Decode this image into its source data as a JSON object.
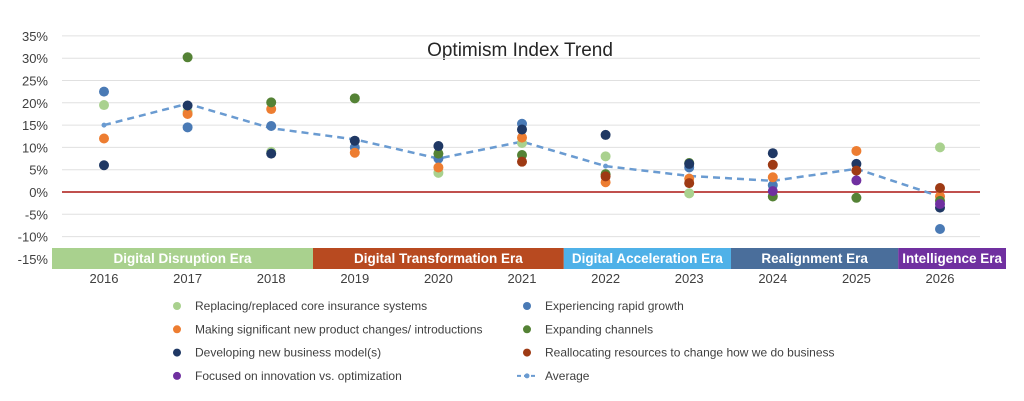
{
  "chart_data": {
    "type": "scatter",
    "title": "Optimism Index Trend",
    "categories": [
      "2016",
      "2017",
      "2018",
      "2019",
      "2020",
      "2021",
      "2022",
      "2023",
      "2024",
      "2025",
      "2026"
    ],
    "ylim": [
      -15,
      35
    ],
    "yticks": [
      "35%",
      "30%",
      "25%",
      "20%",
      "15%",
      "10%",
      "5%",
      "0%",
      "-5%",
      "-10%",
      "-15%"
    ],
    "ytick_values": [
      35,
      30,
      25,
      20,
      15,
      10,
      5,
      0,
      -5,
      -10,
      -15
    ],
    "grid": true,
    "legend_position": "bottom",
    "zero_line_color": "#c0504d",
    "eras": [
      {
        "label": "Digital Disruption Era",
        "from": "2016",
        "to": "2018",
        "color": "#a9d18e"
      },
      {
        "label": "Digital Transformation Era",
        "from": "2019",
        "to": "2021",
        "color": "#b84a20"
      },
      {
        "label": "Digital Acceleration Era",
        "from": "2022",
        "to": "2023",
        "color": "#4fb1e8"
      },
      {
        "label": "Realignment Era",
        "from": "2024",
        "to": "2025",
        "color": "#4a6e9b"
      },
      {
        "label": "Intelligence Era",
        "from": "2026",
        "to": "2026",
        "color": "#7030a0"
      }
    ],
    "series": [
      {
        "name": "Replacing/replaced core insurance systems",
        "color": "#a9d18e",
        "values": [
          19.5,
          18,
          9,
          null,
          4.3,
          11,
          8,
          -0.3,
          null,
          null,
          10
        ]
      },
      {
        "name": "Experiencing rapid growth",
        "color": "#4a7ab5",
        "values": [
          22.5,
          14.5,
          14.8,
          10,
          7.5,
          15.3,
          null,
          5.5,
          1.5,
          null,
          -8.3
        ]
      },
      {
        "name": "Making significant new product changes/ introductions",
        "color": "#ed7d31",
        "values": [
          12,
          17.5,
          18.6,
          8.8,
          5.5,
          12.2,
          2.2,
          3,
          3.3,
          9.2,
          -1
        ]
      },
      {
        "name": "Expanding channels",
        "color": "#548235",
        "values": [
          null,
          30.2,
          20.1,
          21,
          8.6,
          8.3,
          4,
          6.5,
          -1,
          -1.3,
          -2
        ]
      },
      {
        "name": "Developing new business model(s)",
        "color": "#1f3864",
        "values": [
          6,
          19.4,
          8.6,
          11.5,
          10.3,
          14,
          12.8,
          6.3,
          8.7,
          6.3,
          -3.5
        ]
      },
      {
        "name": "Reallocating resources to change how we do business",
        "color": "#9e3a14",
        "values": [
          null,
          null,
          null,
          null,
          null,
          6.8,
          3.5,
          2,
          6.1,
          4.8,
          0.9
        ]
      },
      {
        "name": "Focused on innovation vs. optimization",
        "color": "#7030a0",
        "values": [
          null,
          null,
          null,
          null,
          null,
          null,
          null,
          null,
          0.2,
          2.6,
          -2.7
        ]
      },
      {
        "name": "Average",
        "color": "#6a9bd1",
        "line": "dashed",
        "values": [
          15,
          19.8,
          14.3,
          11.8,
          7.5,
          11.3,
          5.8,
          3.6,
          2.5,
          5.2,
          -1
        ]
      }
    ]
  }
}
